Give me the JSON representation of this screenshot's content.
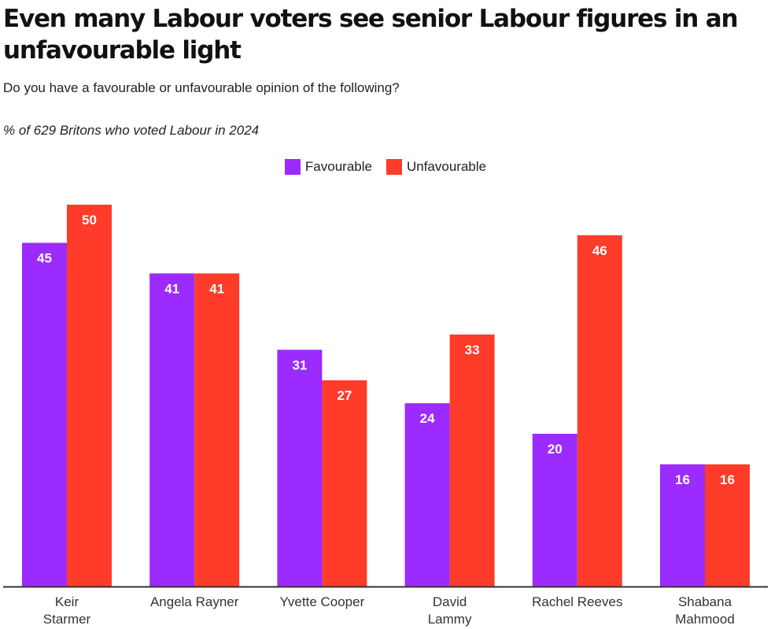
{
  "title": "Even many Labour voters see senior Labour figures in an unfavourable light",
  "subtitle": "Do you have a favourable or unfavourable opinion of the following?",
  "note": "% of 629 Britons who voted Labour in 2024",
  "colors": {
    "favourable": "#9b2bff",
    "unfavourable": "#ff3b2a",
    "axis": "#333333",
    "label": "#ffffff",
    "tick": "#333333"
  },
  "legend": [
    {
      "name": "Favourable",
      "color_key": "favourable"
    },
    {
      "name": "Unfavourable",
      "color_key": "unfavourable"
    }
  ],
  "chart_data": {
    "type": "bar",
    "title": "Even many Labour voters see senior Labour figures in an unfavourable light",
    "xlabel": "",
    "ylabel": "",
    "ylim": [
      0,
      50
    ],
    "categories": [
      [
        "Keir",
        "Starmer"
      ],
      [
        "Angela Rayner"
      ],
      [
        "Yvette Cooper"
      ],
      [
        "David",
        "Lammy"
      ],
      [
        "Rachel Reeves"
      ],
      [
        "Shabana",
        "Mahmood"
      ]
    ],
    "series": [
      {
        "name": "Favourable",
        "values": [
          45,
          41,
          31,
          24,
          20,
          16
        ]
      },
      {
        "name": "Unfavourable",
        "values": [
          50,
          41,
          27,
          33,
          46,
          16
        ]
      }
    ]
  }
}
